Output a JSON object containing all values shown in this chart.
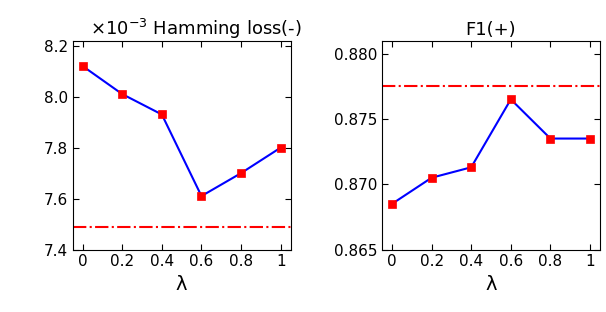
{
  "lambda_vals": [
    0,
    0.2,
    0.4,
    0.6,
    0.8,
    1.0
  ],
  "hamming_values": [
    0.00812,
    0.00801,
    0.00793,
    0.00761,
    0.0077,
    0.0078
  ],
  "hamming_baseline": 0.00749,
  "hamming_ylim": [
    0.0074,
    0.00822
  ],
  "hamming_yticks": [
    0.0074,
    0.0076,
    0.0078,
    0.008,
    0.0082
  ],
  "f1_values": [
    0.8685,
    0.8705,
    0.8713,
    0.8765,
    0.8735,
    0.8735
  ],
  "f1_baseline": 0.8775,
  "f1_ylim": [
    0.865,
    0.881
  ],
  "f1_yticks": [
    0.865,
    0.87,
    0.875,
    0.88
  ],
  "f1_title": "F1(+)",
  "hamming_title": "Hamming loss(-)",
  "line_color": "#0000FF",
  "marker_color": "#FF0000",
  "baseline_color": "#FF0000",
  "xlabel": "λ",
  "line_width": 1.5,
  "marker_size": 6,
  "tick_labelsize": 11,
  "title_fontsize": 13,
  "xlabel_fontsize": 14
}
